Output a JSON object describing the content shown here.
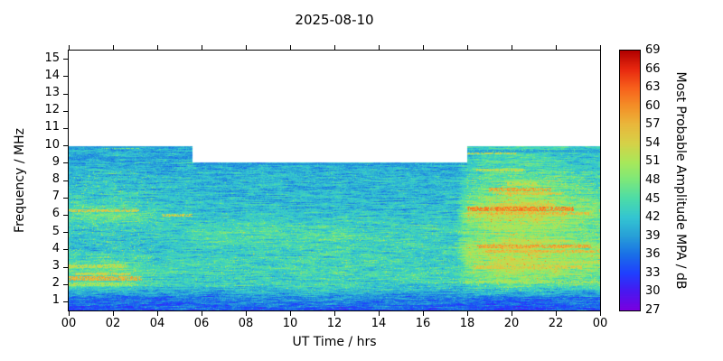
{
  "chart_data": {
    "type": "heatmap",
    "title": "2025-08-10",
    "xlabel": "UT Time / hrs",
    "ylabel": "Frequency / MHz",
    "colorbar_label": "Most Probable Amplitude MPA / dB",
    "x_range": [
      0,
      24
    ],
    "y_range": [
      0.5,
      15.5
    ],
    "x_ticks": {
      "values": [
        0,
        2,
        4,
        6,
        8,
        10,
        12,
        14,
        16,
        18,
        20,
        22,
        24
      ],
      "labels": [
        "00",
        "02",
        "04",
        "06",
        "08",
        "10",
        "12",
        "14",
        "16",
        "18",
        "20",
        "22",
        "00"
      ]
    },
    "y_ticks": [
      1,
      2,
      3,
      4,
      5,
      6,
      7,
      8,
      9,
      10,
      11,
      12,
      13,
      14,
      15
    ],
    "colorbar_ticks": [
      27,
      30,
      33,
      36,
      39,
      42,
      45,
      48,
      51,
      54,
      57,
      60,
      63,
      66,
      69
    ],
    "colormap": [
      {
        "v": 27,
        "c": "#7c00e0"
      },
      {
        "v": 30,
        "c": "#4a18f0"
      },
      {
        "v": 33,
        "c": "#2040ff"
      },
      {
        "v": 36,
        "c": "#1a70e8"
      },
      {
        "v": 39,
        "c": "#28a0d8"
      },
      {
        "v": 42,
        "c": "#34c6d2"
      },
      {
        "v": 45,
        "c": "#4cdcaa"
      },
      {
        "v": 48,
        "c": "#7ce87c"
      },
      {
        "v": 51,
        "c": "#aae85a"
      },
      {
        "v": 54,
        "c": "#d6d248"
      },
      {
        "v": 57,
        "c": "#eab83c"
      },
      {
        "v": 60,
        "c": "#f49028"
      },
      {
        "v": 63,
        "c": "#f8601c"
      },
      {
        "v": 66,
        "c": "#e82810"
      },
      {
        "v": 69,
        "c": "#b00000"
      }
    ],
    "coverage": {
      "f_min": 0.5,
      "f_max_night": 10.0,
      "f_max_day": 9.05,
      "day_start": 5.6,
      "day_end": 18.0
    },
    "grid": {
      "times": [
        0,
        2,
        4,
        6,
        8,
        10,
        12,
        14,
        16,
        17.5,
        18,
        20,
        22,
        24
      ],
      "freqs": [
        0.5,
        1.2,
        2,
        3,
        4,
        5,
        6,
        7,
        8,
        9,
        10
      ],
      "values": [
        [
          34,
          34,
          34,
          35,
          35,
          35,
          35,
          35,
          35,
          35,
          34,
          34,
          34,
          34
        ],
        [
          36,
          36,
          36,
          37,
          38,
          38,
          38,
          38,
          37,
          37,
          36,
          36,
          36,
          36
        ],
        [
          44,
          46,
          43,
          43,
          43,
          44,
          44,
          43,
          43,
          43,
          45,
          48,
          46,
          45
        ],
        [
          46,
          47,
          44,
          43,
          44,
          44,
          44,
          44,
          43,
          43,
          48,
          52,
          50,
          48
        ],
        [
          42,
          42,
          42,
          43,
          43,
          44,
          44,
          43,
          43,
          43,
          50,
          53,
          51,
          49
        ],
        [
          42,
          42,
          42,
          44,
          45,
          45,
          45,
          44,
          43,
          43,
          46,
          49,
          48,
          46
        ],
        [
          45,
          47,
          44,
          42,
          42,
          42,
          42,
          42,
          42,
          42,
          50,
          53,
          51,
          48
        ],
        [
          42,
          43,
          42,
          41,
          41,
          41,
          41,
          41,
          41,
          41,
          46,
          51,
          49,
          46
        ],
        [
          41,
          42,
          41,
          41,
          41,
          41,
          41,
          41,
          41,
          41,
          44,
          47,
          46,
          44
        ],
        [
          40,
          40,
          40,
          40,
          40,
          40,
          40,
          40,
          40,
          40,
          43,
          45,
          44,
          42
        ],
        [
          40,
          40,
          40,
          40,
          40,
          40,
          40,
          40,
          40,
          40,
          43,
          44,
          43,
          42
        ]
      ]
    },
    "streaks": [
      {
        "f": 2.35,
        "t0": 0,
        "t1": 3.3,
        "v": 57,
        "w": 0.12
      },
      {
        "f": 2.6,
        "t0": 0.3,
        "t1": 2.8,
        "v": 53
      },
      {
        "f": 2.0,
        "t0": 0,
        "t1": 3,
        "v": 50
      },
      {
        "f": 3.05,
        "t0": 0,
        "t1": 2.5,
        "v": 52
      },
      {
        "f": 6.25,
        "t0": 0,
        "t1": 3.2,
        "v": 54
      },
      {
        "f": 6.0,
        "t0": 4.2,
        "t1": 5.6,
        "v": 54
      },
      {
        "f": 9.9,
        "t0": 1.5,
        "t1": 3.2,
        "v": 48
      },
      {
        "f": 2.15,
        "t0": 17.8,
        "t1": 24,
        "v": 50
      },
      {
        "f": 3.0,
        "t0": 18.3,
        "t1": 23.2,
        "v": 54
      },
      {
        "f": 3.3,
        "t0": 19,
        "t1": 24,
        "v": 52
      },
      {
        "f": 3.9,
        "t0": 18.8,
        "t1": 24,
        "v": 56
      },
      {
        "f": 4.2,
        "t0": 18.4,
        "t1": 23.6,
        "v": 58,
        "w": 0.12
      },
      {
        "f": 4.5,
        "t0": 19.5,
        "t1": 22.5,
        "v": 52
      },
      {
        "f": 5.3,
        "t0": 18.5,
        "t1": 22,
        "v": 50
      },
      {
        "f": 6.35,
        "t0": 18,
        "t1": 22.8,
        "v": 60,
        "w": 0.12
      },
      {
        "f": 6.1,
        "t0": 18.5,
        "t1": 23.5,
        "v": 56
      },
      {
        "f": 6.6,
        "t0": 19,
        "t1": 22,
        "v": 54
      },
      {
        "f": 7.5,
        "t0": 19,
        "t1": 21.8,
        "v": 58,
        "w": 0.1
      },
      {
        "f": 7.25,
        "t0": 19.3,
        "t1": 22.3,
        "v": 55
      },
      {
        "f": 7.8,
        "t0": 19.8,
        "t1": 21.2,
        "v": 52
      },
      {
        "f": 8.6,
        "t0": 18.4,
        "t1": 20.6,
        "v": 52
      },
      {
        "f": 9.6,
        "t0": 18,
        "t1": 20.2,
        "v": 53
      },
      {
        "f": 8.95,
        "t0": 5.6,
        "t1": 18,
        "v": 37,
        "w": 0.06
      },
      {
        "f": 9.3,
        "t0": 0,
        "t1": 5.6,
        "v": 37,
        "w": 0.06
      },
      {
        "f": 9.95,
        "t0": 0,
        "t1": 5.6,
        "v": 38,
        "w": 0.06
      },
      {
        "f": 9.7,
        "t0": 18,
        "t1": 24,
        "v": 38,
        "w": 0.06
      }
    ]
  }
}
